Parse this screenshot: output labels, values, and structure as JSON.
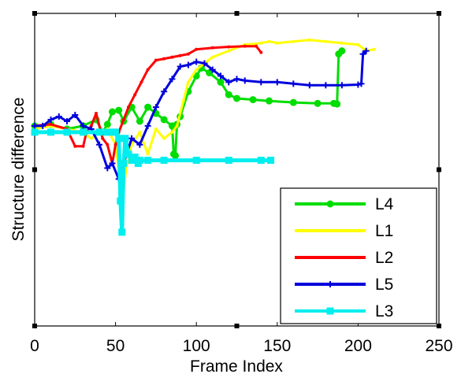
{
  "chart_data": {
    "type": "line",
    "title": "",
    "xlabel": "Frame Index",
    "ylabel": "Structure difference",
    "xlim": [
      0,
      250
    ],
    "ylim": [
      0,
      1
    ],
    "xticks": [
      0,
      50,
      100,
      150,
      200,
      250
    ],
    "grid": false,
    "legend_position": "bottom-right",
    "series": [
      {
        "name": "L4",
        "color": "#00dd00",
        "marker": "circle",
        "points": [
          [
            0,
            0.64
          ],
          [
            10,
            0.645
          ],
          [
            20,
            0.63
          ],
          [
            30,
            0.64
          ],
          [
            38,
            0.66
          ],
          [
            42,
            0.62
          ],
          [
            45,
            0.645
          ],
          [
            48,
            0.685
          ],
          [
            52,
            0.69
          ],
          [
            55,
            0.655
          ],
          [
            60,
            0.7
          ],
          [
            65,
            0.655
          ],
          [
            70,
            0.7
          ],
          [
            75,
            0.68
          ],
          [
            80,
            0.66
          ],
          [
            85,
            0.64
          ],
          [
            86,
            0.55
          ],
          [
            87,
            0.545
          ],
          [
            88,
            0.645
          ],
          [
            90,
            0.67
          ],
          [
            95,
            0.75
          ],
          [
            100,
            0.8
          ],
          [
            103,
            0.825
          ],
          [
            108,
            0.81
          ],
          [
            115,
            0.78
          ],
          [
            120,
            0.74
          ],
          [
            125,
            0.728
          ],
          [
            135,
            0.724
          ],
          [
            145,
            0.72
          ],
          [
            160,
            0.715
          ],
          [
            175,
            0.712
          ],
          [
            185,
            0.712
          ],
          [
            187,
            0.71
          ],
          [
            188,
            0.87
          ],
          [
            190,
            0.88
          ]
        ]
      },
      {
        "name": "L1",
        "color": "#ffff00",
        "marker": "point",
        "points": [
          [
            0,
            0.63
          ],
          [
            10,
            0.64
          ],
          [
            20,
            0.63
          ],
          [
            30,
            0.62
          ],
          [
            35,
            0.6
          ],
          [
            40,
            0.62
          ],
          [
            45,
            0.63
          ],
          [
            50,
            0.58
          ],
          [
            53,
            0.46
          ],
          [
            55,
            0.44
          ],
          [
            57,
            0.52
          ],
          [
            60,
            0.58
          ],
          [
            65,
            0.62
          ],
          [
            70,
            0.55
          ],
          [
            75,
            0.63
          ],
          [
            80,
            0.6
          ],
          [
            85,
            0.62
          ],
          [
            88,
            0.64
          ],
          [
            92,
            0.72
          ],
          [
            95,
            0.78
          ],
          [
            100,
            0.82
          ],
          [
            105,
            0.84
          ],
          [
            110,
            0.86
          ],
          [
            120,
            0.88
          ],
          [
            130,
            0.9
          ],
          [
            140,
            0.905
          ],
          [
            145,
            0.91
          ],
          [
            150,
            0.905
          ],
          [
            160,
            0.91
          ],
          [
            170,
            0.915
          ],
          [
            180,
            0.91
          ],
          [
            190,
            0.905
          ],
          [
            200,
            0.9
          ],
          [
            205,
            0.88
          ],
          [
            210,
            0.885
          ]
        ]
      },
      {
        "name": "L2",
        "color": "#ff0000",
        "marker": "point",
        "points": [
          [
            0,
            0.64
          ],
          [
            10,
            0.645
          ],
          [
            20,
            0.63
          ],
          [
            25,
            0.575
          ],
          [
            30,
            0.575
          ],
          [
            32,
            0.62
          ],
          [
            35,
            0.64
          ],
          [
            38,
            0.68
          ],
          [
            42,
            0.6
          ],
          [
            45,
            0.58
          ],
          [
            48,
            0.52
          ],
          [
            50,
            0.58
          ],
          [
            52,
            0.62
          ],
          [
            55,
            0.66
          ],
          [
            58,
            0.7
          ],
          [
            62,
            0.74
          ],
          [
            66,
            0.78
          ],
          [
            70,
            0.82
          ],
          [
            75,
            0.85
          ],
          [
            80,
            0.855
          ],
          [
            85,
            0.86
          ],
          [
            90,
            0.865
          ],
          [
            95,
            0.87
          ],
          [
            100,
            0.885
          ],
          [
            110,
            0.89
          ],
          [
            120,
            0.893
          ],
          [
            130,
            0.895
          ],
          [
            137,
            0.895
          ],
          [
            140,
            0.875
          ]
        ]
      },
      {
        "name": "L5",
        "color": "#0000dd",
        "marker": "plus",
        "points": [
          [
            0,
            0.64
          ],
          [
            5,
            0.64
          ],
          [
            10,
            0.66
          ],
          [
            15,
            0.67
          ],
          [
            20,
            0.655
          ],
          [
            25,
            0.675
          ],
          [
            30,
            0.64
          ],
          [
            35,
            0.63
          ],
          [
            40,
            0.58
          ],
          [
            45,
            0.505
          ],
          [
            48,
            0.52
          ],
          [
            52,
            0.47
          ],
          [
            55,
            0.52
          ],
          [
            60,
            0.6
          ],
          [
            65,
            0.58
          ],
          [
            70,
            0.64
          ],
          [
            75,
            0.7
          ],
          [
            80,
            0.75
          ],
          [
            85,
            0.79
          ],
          [
            90,
            0.83
          ],
          [
            95,
            0.835
          ],
          [
            100,
            0.845
          ],
          [
            105,
            0.84
          ],
          [
            110,
            0.82
          ],
          [
            115,
            0.8
          ],
          [
            120,
            0.78
          ],
          [
            125,
            0.79
          ],
          [
            130,
            0.785
          ],
          [
            140,
            0.78
          ],
          [
            150,
            0.78
          ],
          [
            160,
            0.775
          ],
          [
            170,
            0.77
          ],
          [
            180,
            0.77
          ],
          [
            190,
            0.77
          ],
          [
            200,
            0.772
          ],
          [
            202,
            0.775
          ],
          [
            203,
            0.87
          ],
          [
            205,
            0.88
          ]
        ]
      },
      {
        "name": "L3",
        "color": "#00eeee",
        "marker": "square",
        "points": [
          [
            0,
            0.62
          ],
          [
            10,
            0.62
          ],
          [
            20,
            0.62
          ],
          [
            30,
            0.62
          ],
          [
            40,
            0.62
          ],
          [
            45,
            0.62
          ],
          [
            48,
            0.62
          ],
          [
            50,
            0.62
          ],
          [
            52,
            0.6
          ],
          [
            53,
            0.4
          ],
          [
            54,
            0.3
          ],
          [
            55,
            0.52
          ],
          [
            56,
            0.6
          ],
          [
            58,
            0.55
          ],
          [
            60,
            0.53
          ],
          [
            62,
            0.54
          ],
          [
            64,
            0.52
          ],
          [
            65,
            0.53
          ],
          [
            70,
            0.53
          ],
          [
            80,
            0.53
          ],
          [
            100,
            0.53
          ],
          [
            120,
            0.53
          ],
          [
            140,
            0.53
          ],
          [
            146,
            0.53
          ]
        ]
      }
    ]
  }
}
